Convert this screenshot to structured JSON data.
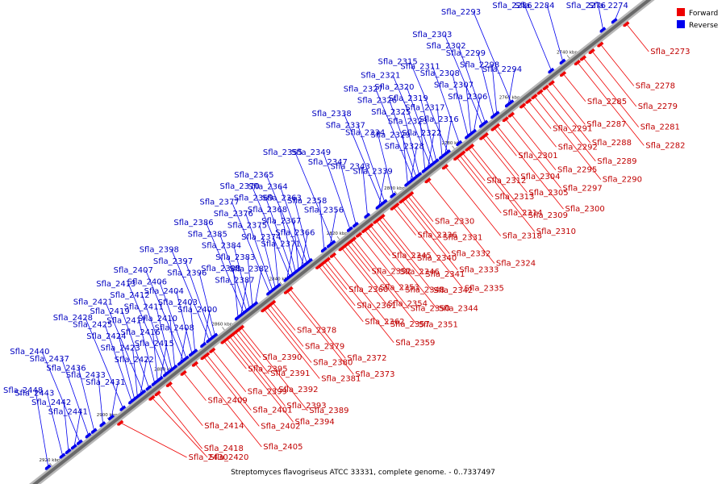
{
  "caption": "Streptomyces flavogriseus ATCC 33331, complete genome. - 0..7337497",
  "legend": [
    {
      "label": "Forward",
      "color": "#ee0000"
    },
    {
      "label": "Reverse",
      "color": "#0000ee"
    }
  ],
  "ticks": [
    "2740 kbp",
    "2760 kbp",
    "2780 kbp",
    "2800 kbp",
    "2820 kbp",
    "2840 kbp",
    "2860 kbp",
    "2880 kbp",
    "2900 kbp",
    "2920 kbp"
  ],
  "genes": [
    {
      "id": "Sfla_2273",
      "strand": "forward",
      "pos": 2722
    },
    {
      "id": "Sfla_2274",
      "strand": "reverse",
      "pos": 2724
    },
    {
      "id": "Sfla_2276",
      "strand": "reverse",
      "pos": 2728
    },
    {
      "id": "Sfla_2278",
      "strand": "forward",
      "pos": 2731
    },
    {
      "id": "Sfla_2279",
      "strand": "forward",
      "pos": 2734
    },
    {
      "id": "Sfla_2281",
      "strand": "forward",
      "pos": 2737
    },
    {
      "id": "Sfla_2282",
      "strand": "forward",
      "pos": 2739
    },
    {
      "id": "Sfla_2284",
      "strand": "reverse",
      "pos": 2742
    },
    {
      "id": "Sfla_2285",
      "strand": "forward",
      "pos": 2744
    },
    {
      "id": "Sfla_2286",
      "strand": "reverse",
      "pos": 2746
    },
    {
      "id": "Sfla_2287",
      "strand": "forward",
      "pos": 2748
    },
    {
      "id": "Sfla_2288",
      "strand": "forward",
      "pos": 2750
    },
    {
      "id": "Sfla_2289",
      "strand": "forward",
      "pos": 2752
    },
    {
      "id": "Sfla_2290",
      "strand": "forward",
      "pos": 2754
    },
    {
      "id": "Sfla_2291",
      "strand": "forward",
      "pos": 2756
    },
    {
      "id": "Sfla_2292",
      "strand": "forward",
      "pos": 2758
    },
    {
      "id": "Sfla_2293",
      "strand": "reverse",
      "pos": 2760
    },
    {
      "id": "Sfla_2294",
      "strand": "reverse",
      "pos": 2761
    },
    {
      "id": "Sfla_2295",
      "strand": "forward",
      "pos": 2762
    },
    {
      "id": "Sfla_2297",
      "strand": "forward",
      "pos": 2764
    },
    {
      "id": "Sfla_2298",
      "strand": "reverse",
      "pos": 2765
    },
    {
      "id": "Sfla_2299",
      "strand": "reverse",
      "pos": 2766
    },
    {
      "id": "Sfla_2300",
      "strand": "forward",
      "pos": 2767
    },
    {
      "id": "Sfla_2301",
      "strand": "forward",
      "pos": 2768
    },
    {
      "id": "Sfla_2302",
      "strand": "reverse",
      "pos": 2769
    },
    {
      "id": "Sfla_2303",
      "strand": "reverse",
      "pos": 2770
    },
    {
      "id": "Sfla_2304",
      "strand": "forward",
      "pos": 2771
    },
    {
      "id": "Sfla_2305",
      "strand": "forward",
      "pos": 2772
    },
    {
      "id": "Sfla_2306",
      "strand": "reverse",
      "pos": 2773
    },
    {
      "id": "Sfla_2307",
      "strand": "reverse",
      "pos": 2774
    },
    {
      "id": "Sfla_2308",
      "strand": "reverse",
      "pos": 2775
    },
    {
      "id": "Sfla_2309",
      "strand": "forward",
      "pos": 2776
    },
    {
      "id": "Sfla_2310",
      "strand": "forward",
      "pos": 2777
    },
    {
      "id": "Sfla_2311",
      "strand": "reverse",
      "pos": 2778
    },
    {
      "id": "Sfla_2312",
      "strand": "forward",
      "pos": 2779
    },
    {
      "id": "Sfla_2313",
      "strand": "forward",
      "pos": 2780
    },
    {
      "id": "Sfla_2314",
      "strand": "forward",
      "pos": 2781
    },
    {
      "id": "Sfla_2315",
      "strand": "reverse",
      "pos": 2782
    },
    {
      "id": "Sfla_2316",
      "strand": "reverse",
      "pos": 2783
    },
    {
      "id": "Sfla_2317",
      "strand": "reverse",
      "pos": 2784
    },
    {
      "id": "Sfla_2318",
      "strand": "forward",
      "pos": 2785
    },
    {
      "id": "Sfla_2319",
      "strand": "reverse",
      "pos": 2786
    },
    {
      "id": "Sfla_2320",
      "strand": "reverse",
      "pos": 2787
    },
    {
      "id": "Sfla_2321",
      "strand": "reverse",
      "pos": 2788
    },
    {
      "id": "Sfla_2322",
      "strand": "reverse",
      "pos": 2789
    },
    {
      "id": "Sfla_2323",
      "strand": "reverse",
      "pos": 2790
    },
    {
      "id": "Sfla_2324",
      "strand": "forward",
      "pos": 2791
    },
    {
      "id": "Sfla_2325",
      "strand": "reverse",
      "pos": 2792
    },
    {
      "id": "Sfla_2326",
      "strand": "reverse",
      "pos": 2793
    },
    {
      "id": "Sfla_2327",
      "strand": "reverse",
      "pos": 2794
    },
    {
      "id": "Sfla_2328",
      "strand": "reverse",
      "pos": 2795
    },
    {
      "id": "Sfla_2329",
      "strand": "reverse",
      "pos": 2796
    },
    {
      "id": "Sfla_2330",
      "strand": "forward",
      "pos": 2797
    },
    {
      "id": "Sfla_2331",
      "strand": "forward",
      "pos": 2798
    },
    {
      "id": "Sfla_2332",
      "strand": "forward",
      "pos": 2799
    },
    {
      "id": "Sfla_2333",
      "strand": "forward",
      "pos": 2800
    },
    {
      "id": "Sfla_2334",
      "strand": "reverse",
      "pos": 2801
    },
    {
      "id": "Sfla_2335",
      "strand": "forward",
      "pos": 2802
    },
    {
      "id": "Sfla_2336",
      "strand": "forward",
      "pos": 2803
    },
    {
      "id": "Sfla_2337",
      "strand": "reverse",
      "pos": 2804
    },
    {
      "id": "Sfla_2338",
      "strand": "reverse",
      "pos": 2805
    },
    {
      "id": "Sfla_2339",
      "strand": "reverse",
      "pos": 2806
    },
    {
      "id": "Sfla_2340",
      "strand": "forward",
      "pos": 2807
    },
    {
      "id": "Sfla_2341",
      "strand": "forward",
      "pos": 2808
    },
    {
      "id": "Sfla_2342",
      "strand": "forward",
      "pos": 2809
    },
    {
      "id": "Sfla_2343",
      "strand": "reverse",
      "pos": 2810
    },
    {
      "id": "Sfla_2344",
      "strand": "forward",
      "pos": 2811
    },
    {
      "id": "Sfla_2345",
      "strand": "forward",
      "pos": 2812
    },
    {
      "id": "Sfla_2346",
      "strand": "forward",
      "pos": 2813
    },
    {
      "id": "Sfla_2347",
      "strand": "reverse",
      "pos": 2814
    },
    {
      "id": "Sfla_2348",
      "strand": "forward",
      "pos": 2815
    },
    {
      "id": "Sfla_2349",
      "strand": "reverse",
      "pos": 2816
    },
    {
      "id": "Sfla_2350",
      "strand": "forward",
      "pos": 2817
    },
    {
      "id": "Sfla_2351",
      "strand": "forward",
      "pos": 2818
    },
    {
      "id": "Sfla_2352",
      "strand": "forward",
      "pos": 2819
    },
    {
      "id": "Sfla_2353",
      "strand": "forward",
      "pos": 2820
    },
    {
      "id": "Sfla_2354",
      "strand": "forward",
      "pos": 2821
    },
    {
      "id": "Sfla_2355",
      "strand": "reverse",
      "pos": 2822
    },
    {
      "id": "Sfla_2356",
      "strand": "reverse",
      "pos": 2823
    },
    {
      "id": "Sfla_2357",
      "strand": "forward",
      "pos": 2824
    },
    {
      "id": "Sfla_2358",
      "strand": "reverse",
      "pos": 2825
    },
    {
      "id": "Sfla_2359",
      "strand": "forward",
      "pos": 2826
    },
    {
      "id": "Sfla_2360",
      "strand": "forward",
      "pos": 2827
    },
    {
      "id": "Sfla_2361",
      "strand": "forward",
      "pos": 2828
    },
    {
      "id": "Sfla_2362",
      "strand": "forward",
      "pos": 2829
    },
    {
      "id": "Sfla_2363",
      "strand": "reverse",
      "pos": 2830
    },
    {
      "id": "Sfla_2364",
      "strand": "reverse",
      "pos": 2831
    },
    {
      "id": "Sfla_2365",
      "strand": "reverse",
      "pos": 2832
    },
    {
      "id": "Sfla_2366",
      "strand": "reverse",
      "pos": 2833
    },
    {
      "id": "Sfla_2367",
      "strand": "reverse",
      "pos": 2834
    },
    {
      "id": "Sfla_2368",
      "strand": "reverse",
      "pos": 2835
    },
    {
      "id": "Sfla_2369",
      "strand": "reverse",
      "pos": 2836
    },
    {
      "id": "Sfla_2370",
      "strand": "reverse",
      "pos": 2837
    },
    {
      "id": "Sfla_2371",
      "strand": "reverse",
      "pos": 2838
    },
    {
      "id": "Sfla_2372",
      "strand": "forward",
      "pos": 2839
    },
    {
      "id": "Sfla_2373",
      "strand": "forward",
      "pos": 2840
    },
    {
      "id": "Sfla_2374",
      "strand": "reverse",
      "pos": 2841
    },
    {
      "id": "Sfla_2375",
      "strand": "reverse",
      "pos": 2842
    },
    {
      "id": "Sfla_2376",
      "strand": "reverse",
      "pos": 2843
    },
    {
      "id": "Sfla_2377",
      "strand": "reverse",
      "pos": 2844
    },
    {
      "id": "Sfla_2378",
      "strand": "forward",
      "pos": 2845
    },
    {
      "id": "Sfla_2379",
      "strand": "forward",
      "pos": 2846
    },
    {
      "id": "Sfla_2380",
      "strand": "forward",
      "pos": 2847
    },
    {
      "id": "Sfla_2381",
      "strand": "forward",
      "pos": 2848
    },
    {
      "id": "Sfla_2382",
      "strand": "reverse",
      "pos": 2849
    },
    {
      "id": "Sfla_2383",
      "strand": "reverse",
      "pos": 2850
    },
    {
      "id": "Sfla_2384",
      "strand": "reverse",
      "pos": 2851
    },
    {
      "id": "Sfla_2385",
      "strand": "reverse",
      "pos": 2852
    },
    {
      "id": "Sfla_2386",
      "strand": "reverse",
      "pos": 2853
    },
    {
      "id": "Sfla_2387",
      "strand": "reverse",
      "pos": 2854
    },
    {
      "id": "Sfla_2388",
      "strand": "reverse",
      "pos": 2855
    },
    {
      "id": "Sfla_2389",
      "strand": "forward",
      "pos": 2856
    },
    {
      "id": "Sfla_2390",
      "strand": "forward",
      "pos": 2857
    },
    {
      "id": "Sfla_2391",
      "strand": "forward",
      "pos": 2858
    },
    {
      "id": "Sfla_2392",
      "strand": "forward",
      "pos": 2859
    },
    {
      "id": "Sfla_2393",
      "strand": "forward",
      "pos": 2860
    },
    {
      "id": "Sfla_2394",
      "strand": "forward",
      "pos": 2861
    },
    {
      "id": "Sfla_2395",
      "strand": "forward",
      "pos": 2862
    },
    {
      "id": "Sfla_2396",
      "strand": "reverse",
      "pos": 2863
    },
    {
      "id": "Sfla_2397",
      "strand": "reverse",
      "pos": 2864
    },
    {
      "id": "Sfla_2398",
      "strand": "reverse",
      "pos": 2865
    },
    {
      "id": "Sfla_2399",
      "strand": "forward",
      "pos": 2866
    },
    {
      "id": "Sfla_2400",
      "strand": "reverse",
      "pos": 2867
    },
    {
      "id": "Sfla_2401",
      "strand": "forward",
      "pos": 2868
    },
    {
      "id": "Sfla_2402",
      "strand": "forward",
      "pos": 2869
    },
    {
      "id": "Sfla_2403",
      "strand": "reverse",
      "pos": 2870
    },
    {
      "id": "Sfla_2404",
      "strand": "reverse",
      "pos": 2871
    },
    {
      "id": "Sfla_2405",
      "strand": "forward",
      "pos": 2872
    },
    {
      "id": "Sfla_2406",
      "strand": "reverse",
      "pos": 2873
    },
    {
      "id": "Sfla_2407",
      "strand": "reverse",
      "pos": 2874
    },
    {
      "id": "Sfla_2408",
      "strand": "reverse",
      "pos": 2875
    },
    {
      "id": "Sfla_2409",
      "strand": "forward",
      "pos": 2876
    },
    {
      "id": "Sfla_2410",
      "strand": "reverse",
      "pos": 2877
    },
    {
      "id": "Sfla_2411",
      "strand": "reverse",
      "pos": 2878
    },
    {
      "id": "Sfla_2412",
      "strand": "reverse",
      "pos": 2879
    },
    {
      "id": "Sfla_2413",
      "strand": "reverse",
      "pos": 2880
    },
    {
      "id": "Sfla_2414",
      "strand": "forward",
      "pos": 2881
    },
    {
      "id": "Sfla_2415",
      "strand": "reverse",
      "pos": 2882
    },
    {
      "id": "Sfla_2416",
      "strand": "reverse",
      "pos": 2883
    },
    {
      "id": "Sfla_2417",
      "strand": "reverse",
      "pos": 2884
    },
    {
      "id": "Sfla_2418",
      "strand": "forward",
      "pos": 2885
    },
    {
      "id": "Sfla_2419",
      "strand": "reverse",
      "pos": 2886
    },
    {
      "id": "Sfla_2420",
      "strand": "forward",
      "pos": 2887
    },
    {
      "id": "Sfla_2421",
      "strand": "reverse",
      "pos": 2888
    },
    {
      "id": "Sfla_2422",
      "strand": "reverse",
      "pos": 2889
    },
    {
      "id": "Sfla_2423",
      "strand": "reverse",
      "pos": 2890
    },
    {
      "id": "Sfla_2424",
      "strand": "reverse",
      "pos": 2891
    },
    {
      "id": "Sfla_2425",
      "strand": "reverse",
      "pos": 2892
    },
    {
      "id": "Sfla_2428",
      "strand": "reverse",
      "pos": 2895
    },
    {
      "id": "Sfla_2430",
      "strand": "forward",
      "pos": 2898
    },
    {
      "id": "Sfla_2431",
      "strand": "reverse",
      "pos": 2899
    },
    {
      "id": "Sfla_2433",
      "strand": "reverse",
      "pos": 2902
    },
    {
      "id": "Sfla_2436",
      "strand": "reverse",
      "pos": 2905
    },
    {
      "id": "Sfla_2437",
      "strand": "reverse",
      "pos": 2907
    },
    {
      "id": "Sfla_2440",
      "strand": "reverse",
      "pos": 2910
    },
    {
      "id": "Sfla_2441",
      "strand": "reverse",
      "pos": 2912
    },
    {
      "id": "Sfla_2442",
      "strand": "reverse",
      "pos": 2914
    },
    {
      "id": "Sfla_2443",
      "strand": "reverse",
      "pos": 2916
    },
    {
      "id": "Sfla_2448",
      "strand": "reverse",
      "pos": 2921
    }
  ]
}
